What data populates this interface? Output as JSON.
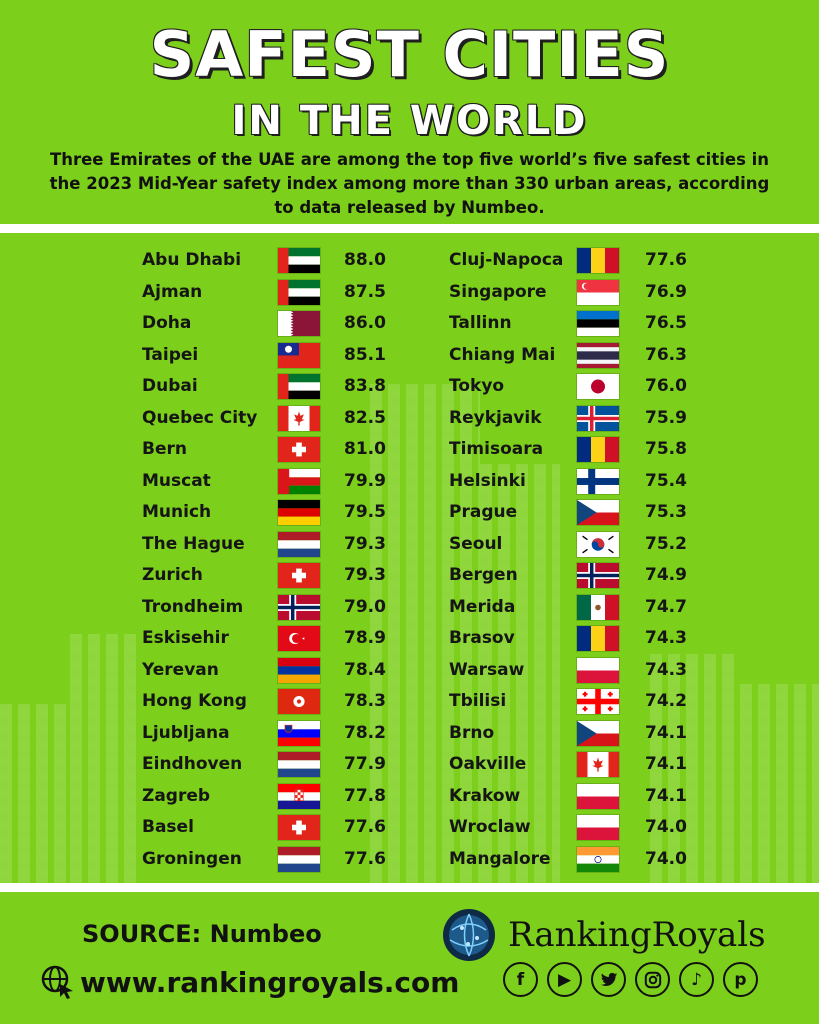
{
  "title": "SAFEST CITIES",
  "subtitle": "IN THE WORLD",
  "intro": "Three Emirates of the UAE are among the top five world’s five safest cities in the 2023 Mid-Year safety index among more than 330 urban areas, according to data released by Numbeo.",
  "left_column": [
    {
      "city": "Abu Dhabi",
      "flag": "uae-flag-icon",
      "score": "88.0"
    },
    {
      "city": "Ajman",
      "flag": "uae-flag-icon",
      "score": "87.5"
    },
    {
      "city": "Doha",
      "flag": "qatar-flag-icon",
      "score": "86.0"
    },
    {
      "city": "Taipei",
      "flag": "taiwan-flag-icon",
      "score": "85.1"
    },
    {
      "city": "Dubai",
      "flag": "uae-flag-icon",
      "score": "83.8"
    },
    {
      "city": "Quebec City",
      "flag": "canada-flag-icon",
      "score": "82.5"
    },
    {
      "city": "Bern",
      "flag": "switzerland-flag-icon",
      "score": "81.0"
    },
    {
      "city": "Muscat",
      "flag": "oman-flag-icon",
      "score": "79.9"
    },
    {
      "city": "Munich",
      "flag": "germany-flag-icon",
      "score": "79.5"
    },
    {
      "city": "The Hague",
      "flag": "netherlands-flag-icon",
      "score": "79.3"
    },
    {
      "city": "Zurich",
      "flag": "switzerland-flag-icon",
      "score": "79.3"
    },
    {
      "city": "Trondheim",
      "flag": "norway-flag-icon",
      "score": "79.0"
    },
    {
      "city": "Eskisehir",
      "flag": "turkey-flag-icon",
      "score": "78.9"
    },
    {
      "city": "Yerevan",
      "flag": "armenia-flag-icon",
      "score": "78.4"
    },
    {
      "city": "Hong Kong",
      "flag": "hong-kong-flag-icon",
      "score": "78.3"
    },
    {
      "city": "Ljubljana",
      "flag": "slovenia-flag-icon",
      "score": "78.2"
    },
    {
      "city": "Eindhoven",
      "flag": "netherlands-flag-icon",
      "score": "77.9"
    },
    {
      "city": "Zagreb",
      "flag": "croatia-flag-icon",
      "score": "77.8"
    },
    {
      "city": "Basel",
      "flag": "switzerland-flag-icon",
      "score": "77.6"
    },
    {
      "city": "Groningen",
      "flag": "netherlands-flag-icon",
      "score": "77.6"
    }
  ],
  "right_column": [
    {
      "city": "Cluj-Napoca",
      "flag": "romania-flag-icon",
      "score": "77.6"
    },
    {
      "city": "Singapore",
      "flag": "singapore-flag-icon",
      "score": "76.9"
    },
    {
      "city": "Tallinn",
      "flag": "estonia-flag-icon",
      "score": "76.5"
    },
    {
      "city": "Chiang Mai",
      "flag": "thailand-flag-icon",
      "score": "76.3"
    },
    {
      "city": "Tokyo",
      "flag": "japan-flag-icon",
      "score": "76.0"
    },
    {
      "city": "Reykjavik",
      "flag": "iceland-flag-icon",
      "score": "75.9"
    },
    {
      "city": "Timisoara",
      "flag": "romania-flag-icon",
      "score": "75.8"
    },
    {
      "city": "Helsinki",
      "flag": "finland-flag-icon",
      "score": "75.4"
    },
    {
      "city": "Prague",
      "flag": "czech-flag-icon",
      "score": "75.3"
    },
    {
      "city": "Seoul",
      "flag": "south-korea-flag-icon",
      "score": "75.2"
    },
    {
      "city": "Bergen",
      "flag": "norway-flag-icon",
      "score": "74.9"
    },
    {
      "city": "Merida",
      "flag": "mexico-flag-icon",
      "score": "74.7"
    },
    {
      "city": "Brasov",
      "flag": "romania-flag-icon",
      "score": "74.3"
    },
    {
      "city": "Warsaw",
      "flag": "poland-flag-icon",
      "score": "74.3"
    },
    {
      "city": "Tbilisi",
      "flag": "georgia-flag-icon",
      "score": "74.2"
    },
    {
      "city": "Brno",
      "flag": "czech-flag-icon",
      "score": "74.1"
    },
    {
      "city": "Oakville",
      "flag": "canada-flag-icon",
      "score": "74.1"
    },
    {
      "city": "Krakow",
      "flag": "poland-flag-icon",
      "score": "74.1"
    },
    {
      "city": "Wroclaw",
      "flag": "poland-flag-icon",
      "score": "74.0"
    },
    {
      "city": "Mangalore",
      "flag": "india-flag-icon",
      "score": "74.0"
    }
  ],
  "footer": {
    "source": "SOURCE: Numbeo",
    "website": "www.rankingroyals.com",
    "brand": "RankingRoyals",
    "socials": [
      "facebook-icon",
      "youtube-icon",
      "twitter-icon",
      "instagram-icon",
      "tiktok-icon",
      "pinterest-icon"
    ]
  },
  "colors": {
    "background": "#7ccf1a",
    "text": "#111111",
    "title": "#ffffff"
  }
}
